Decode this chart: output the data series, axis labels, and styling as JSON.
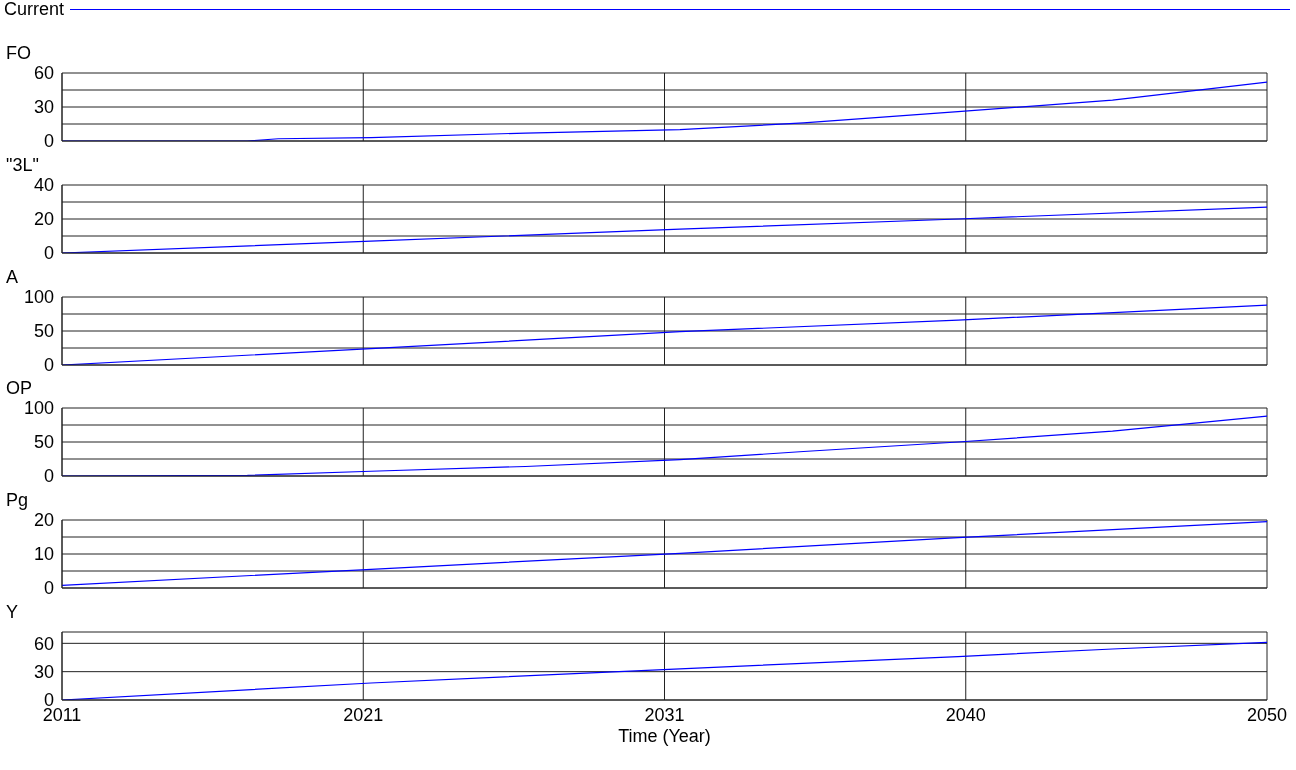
{
  "chart_data": [
    {
      "type": "line",
      "title": "FO",
      "legend": "top",
      "grid": true,
      "tick_labels": "y",
      "xlim": [
        2011,
        2050
      ],
      "xticks": [
        {
          "value": 2020.75,
          "label": null
        },
        {
          "value": 2030.5,
          "label": null
        },
        {
          "value": 2040.25,
          "label": null
        }
      ],
      "ylim": [
        0,
        60
      ],
      "yticks": [
        0,
        {
          "value": 15,
          "label": null
        },
        30,
        {
          "value": 45,
          "label": null
        },
        60
      ],
      "x": [
        2011,
        2017,
        2018,
        2021,
        2026,
        2031,
        2035,
        2040,
        2045,
        2050
      ],
      "series": [
        {
          "name": "Current",
          "color": "#0000ff",
          "values": [
            0,
            0,
            2,
            3,
            7,
            10,
            16,
            26,
            36,
            52
          ]
        }
      ]
    },
    {
      "type": "line",
      "title": "\"3L\"",
      "grid": true,
      "tick_labels": "y",
      "xlim": [
        2011,
        2050
      ],
      "xticks": [
        {
          "value": 2020.75,
          "label": null
        },
        {
          "value": 2030.5,
          "label": null
        },
        {
          "value": 2040.25,
          "label": null
        }
      ],
      "ylim": [
        0,
        40
      ],
      "yticks": [
        0,
        {
          "value": 10,
          "label": null
        },
        20,
        {
          "value": 30,
          "label": null
        },
        40
      ],
      "x": [
        2011,
        2021,
        2031,
        2040,
        2050
      ],
      "series": [
        {
          "color": "#0000ff",
          "values": [
            0,
            7,
            14,
            20,
            27
          ]
        }
      ]
    },
    {
      "type": "line",
      "title": "A",
      "grid": true,
      "tick_labels": "y",
      "xlim": [
        2011,
        2050
      ],
      "xticks": [
        {
          "value": 2020.75,
          "label": null
        },
        {
          "value": 2030.5,
          "label": null
        },
        {
          "value": 2040.25,
          "label": null
        }
      ],
      "ylim": [
        0,
        100
      ],
      "yticks": [
        0,
        {
          "value": 25,
          "label": null
        },
        50,
        {
          "value": 75,
          "label": null
        },
        100
      ],
      "x": [
        2011,
        2021,
        2031,
        2040,
        2050
      ],
      "series": [
        {
          "color": "#0000ff",
          "values": [
            0,
            24,
            49,
            66,
            88
          ]
        }
      ]
    },
    {
      "type": "line",
      "title": "OP",
      "grid": true,
      "tick_labels": "y",
      "xlim": [
        2011,
        2050
      ],
      "xticks": [
        {
          "value": 2020.75,
          "label": null
        },
        {
          "value": 2030.5,
          "label": null
        },
        {
          "value": 2040.25,
          "label": null
        }
      ],
      "ylim": [
        0,
        100
      ],
      "yticks": [
        0,
        {
          "value": 25,
          "label": null
        },
        50,
        {
          "value": 75,
          "label": null
        },
        100
      ],
      "x": [
        2011,
        2017,
        2021,
        2026,
        2031,
        2035,
        2040,
        2045,
        2050
      ],
      "series": [
        {
          "color": "#0000ff",
          "values": [
            0,
            1,
            7,
            14,
            24,
            36,
            50,
            66,
            88
          ]
        }
      ]
    },
    {
      "type": "line",
      "title": "Pg",
      "grid": true,
      "tick_labels": "y",
      "xlim": [
        2011,
        2050
      ],
      "xticks": [
        {
          "value": 2020.75,
          "label": null
        },
        {
          "value": 2030.5,
          "label": null
        },
        {
          "value": 2040.25,
          "label": null
        }
      ],
      "ylim": [
        0,
        20
      ],
      "yticks": [
        0,
        {
          "value": 5,
          "label": null
        },
        10,
        {
          "value": 15,
          "label": null
        },
        20
      ],
      "x": [
        2011,
        2021,
        2031,
        2040,
        2050
      ],
      "series": [
        {
          "color": "#0000ff",
          "values": [
            0.8,
            5.5,
            10.2,
            14.8,
            19.5
          ]
        }
      ]
    },
    {
      "type": "line",
      "title": "Y",
      "xlabel": "Time (Year)",
      "grid": true,
      "xlim": [
        2011,
        2050
      ],
      "xticks": [
        2011,
        {
          "value": 2020.75,
          "label": "2021"
        },
        {
          "value": 2030.5,
          "label": "2031"
        },
        {
          "value": 2040.25,
          "label": "2040"
        },
        2050
      ],
      "ylim": [
        0,
        72
      ],
      "yticks": [
        0,
        30,
        60,
        {
          "value": 72,
          "label": null
        }
      ],
      "x": [
        2011,
        2021,
        2031,
        2040,
        2045,
        2050
      ],
      "series": [
        {
          "color": "#0000ff",
          "values": [
            0,
            18,
            33,
            46,
            54,
            61
          ]
        }
      ]
    }
  ]
}
